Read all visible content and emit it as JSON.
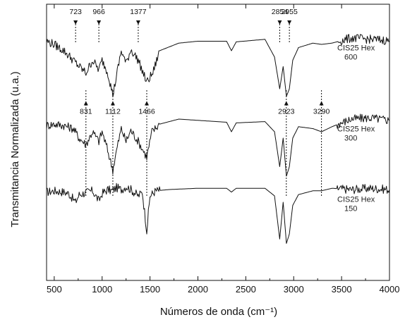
{
  "chart_data": {
    "type": "line",
    "title": "",
    "xlabel": "Números de onda (cm⁻¹)",
    "ylabel": "Transmitancia Normalizada (u.a.)",
    "xlim": [
      420,
      4000
    ],
    "x_ticks": [
      500,
      1000,
      1500,
      2000,
      2500,
      3000,
      3500,
      4000
    ],
    "x_tick_labels": [
      "500",
      "1000",
      "1500",
      "2000",
      "2500",
      "3000",
      "3500",
      "4000"
    ],
    "y_ticks_shown": false,
    "grid": false,
    "series": [
      {
        "name": "CIS25 Hex 150",
        "label_line1": "CIS25 Hex",
        "label_line2": "150",
        "offset": 2.0,
        "points": [
          [
            420,
            0.86
          ],
          [
            500,
            0.88
          ],
          [
            600,
            0.86
          ],
          [
            650,
            0.84
          ],
          [
            723,
            0.7
          ],
          [
            760,
            0.82
          ],
          [
            850,
            0.86
          ],
          [
            900,
            0.88
          ],
          [
            966,
            0.72
          ],
          [
            1000,
            0.84
          ],
          [
            1060,
            0.9
          ],
          [
            1100,
            0.88
          ],
          [
            1150,
            0.93
          ],
          [
            1200,
            0.9
          ],
          [
            1250,
            0.95
          ],
          [
            1300,
            0.9
          ],
          [
            1377,
            0.8
          ],
          [
            1420,
            0.86
          ],
          [
            1466,
            0.25
          ],
          [
            1500,
            0.8
          ],
          [
            1560,
            0.88
          ],
          [
            1700,
            0.9
          ],
          [
            2000,
            0.92
          ],
          [
            2300,
            0.92
          ],
          [
            2350,
            0.86
          ],
          [
            2400,
            0.92
          ],
          [
            2700,
            0.92
          ],
          [
            2800,
            0.8
          ],
          [
            2854,
            0.12
          ],
          [
            2890,
            0.7
          ],
          [
            2924,
            0.05
          ],
          [
            2955,
            0.2
          ],
          [
            2990,
            0.65
          ],
          [
            3050,
            0.82
          ],
          [
            3200,
            0.88
          ],
          [
            3290,
            0.88
          ],
          [
            3400,
            0.92
          ],
          [
            3600,
            0.9
          ],
          [
            3800,
            0.92
          ],
          [
            4000,
            0.9
          ]
        ]
      },
      {
        "name": "CIS25 Hex 300",
        "label_line1": "CIS25 Hex",
        "label_line2": "300",
        "offset": 1.0,
        "points": [
          [
            420,
            0.8
          ],
          [
            500,
            0.82
          ],
          [
            600,
            0.8
          ],
          [
            700,
            0.75
          ],
          [
            760,
            0.6
          ],
          [
            831,
            0.5
          ],
          [
            900,
            0.7
          ],
          [
            966,
            0.55
          ],
          [
            1000,
            0.7
          ],
          [
            1050,
            0.45
          ],
          [
            1112,
            0.1
          ],
          [
            1150,
            0.4
          ],
          [
            1200,
            0.75
          ],
          [
            1250,
            0.55
          ],
          [
            1300,
            0.72
          ],
          [
            1377,
            0.55
          ],
          [
            1466,
            0.3
          ],
          [
            1520,
            0.7
          ],
          [
            1600,
            0.82
          ],
          [
            1800,
            0.9
          ],
          [
            2000,
            0.88
          ],
          [
            2300,
            0.85
          ],
          [
            2350,
            0.7
          ],
          [
            2400,
            0.84
          ],
          [
            2700,
            0.86
          ],
          [
            2800,
            0.7
          ],
          [
            2854,
            0.15
          ],
          [
            2890,
            0.6
          ],
          [
            2924,
            0.0
          ],
          [
            2955,
            0.15
          ],
          [
            2990,
            0.6
          ],
          [
            3050,
            0.78
          ],
          [
            3200,
            0.75
          ],
          [
            3290,
            0.7
          ],
          [
            3400,
            0.78
          ],
          [
            3600,
            0.9
          ],
          [
            3800,
            0.92
          ],
          [
            4000,
            0.88
          ]
        ]
      },
      {
        "name": "CIS25 Hex 600",
        "label_line1": "CIS25 Hex",
        "label_line2": "600",
        "offset": 0.0,
        "points": [
          [
            420,
            0.85
          ],
          [
            500,
            0.8
          ],
          [
            600,
            0.7
          ],
          [
            700,
            0.55
          ],
          [
            760,
            0.45
          ],
          [
            831,
            0.35
          ],
          [
            900,
            0.55
          ],
          [
            966,
            0.4
          ],
          [
            1000,
            0.55
          ],
          [
            1060,
            0.35
          ],
          [
            1112,
            0.0
          ],
          [
            1150,
            0.3
          ],
          [
            1200,
            0.7
          ],
          [
            1250,
            0.5
          ],
          [
            1300,
            0.72
          ],
          [
            1377,
            0.55
          ],
          [
            1466,
            0.2
          ],
          [
            1530,
            0.35
          ],
          [
            1600,
            0.7
          ],
          [
            1800,
            0.82
          ],
          [
            2000,
            0.85
          ],
          [
            2300,
            0.85
          ],
          [
            2350,
            0.7
          ],
          [
            2400,
            0.84
          ],
          [
            2700,
            0.88
          ],
          [
            2800,
            0.6
          ],
          [
            2854,
            0.1
          ],
          [
            2890,
            0.45
          ],
          [
            2924,
            -0.02
          ],
          [
            2955,
            0.1
          ],
          [
            2990,
            0.55
          ],
          [
            3050,
            0.75
          ],
          [
            3200,
            0.82
          ],
          [
            3290,
            0.8
          ],
          [
            3400,
            0.82
          ],
          [
            3600,
            0.9
          ],
          [
            3800,
            0.88
          ],
          [
            4000,
            0.86
          ]
        ]
      }
    ],
    "annotations": [
      {
        "text": "723",
        "x": 723,
        "series": 0
      },
      {
        "text": "966",
        "x": 966,
        "series": 0
      },
      {
        "text": "1377",
        "x": 1377,
        "series": 0
      },
      {
        "text": "2854",
        "x": 2854,
        "series": 0
      },
      {
        "text": "2955",
        "x": 2955,
        "series": 0
      },
      {
        "text": "831",
        "x": 831,
        "series": 2
      },
      {
        "text": "1112",
        "x": 1112,
        "series": 2
      },
      {
        "text": "1466",
        "x": 1466,
        "series": 2
      },
      {
        "text": "2923",
        "x": 2923,
        "series": 2
      },
      {
        "text": "3290",
        "x": 3290,
        "series": 2
      }
    ],
    "colors": {
      "line": "#111111",
      "axis": "#111111",
      "background": "#ffffff"
    }
  }
}
